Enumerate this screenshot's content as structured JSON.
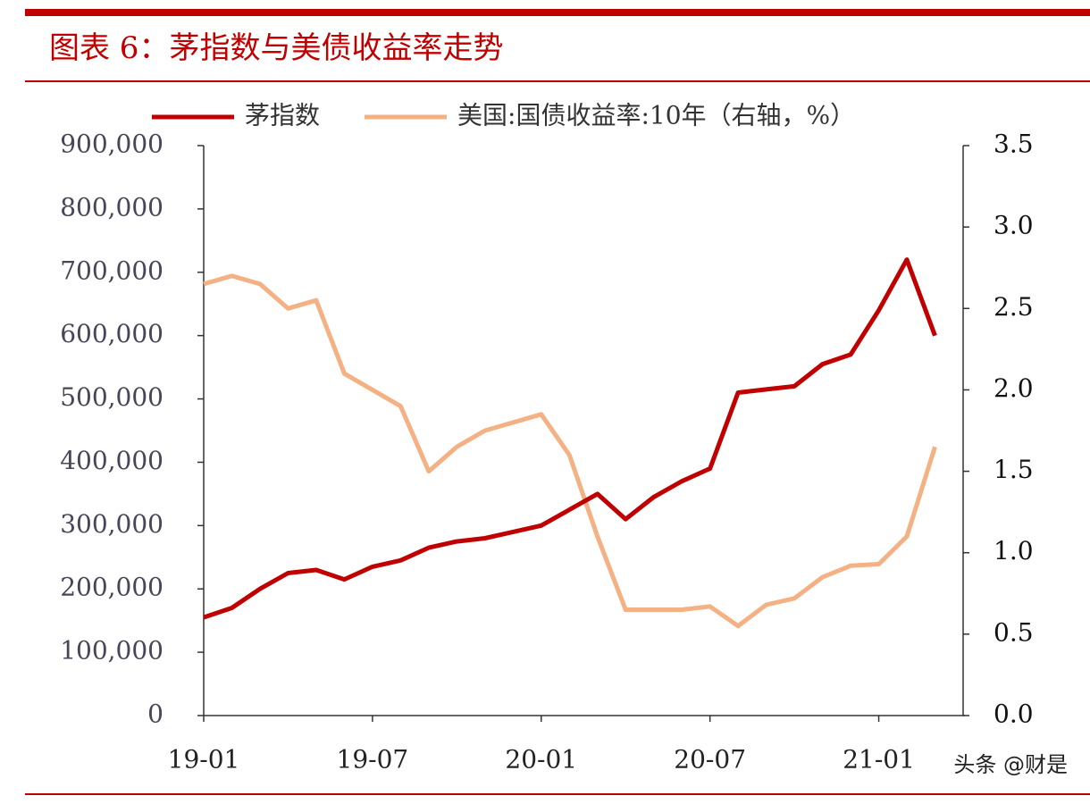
{
  "chart_data": {
    "type": "line",
    "title": "图表 6：茅指数与美债收益率走势",
    "watermark": "头条 @财是",
    "x": [
      "19-01",
      "19-02",
      "19-03",
      "19-04",
      "19-05",
      "19-06",
      "19-07",
      "19-08",
      "19-09",
      "19-10",
      "19-11",
      "19-12",
      "20-01",
      "20-02",
      "20-03",
      "20-04",
      "20-05",
      "20-06",
      "20-07",
      "20-08",
      "20-09",
      "20-10",
      "20-11",
      "20-12",
      "21-01",
      "21-02",
      "21-03"
    ],
    "xlim": [
      "19-01",
      "21-04"
    ],
    "xticks": [
      "19-01",
      "19-07",
      "20-01",
      "20-07",
      "21-01"
    ],
    "ylim": [
      0,
      900000
    ],
    "yticks": [
      0,
      {
        "value": 100000,
        "label": "100,000"
      },
      {
        "value": 200000,
        "label": "200,000"
      },
      {
        "value": 300000,
        "label": "300,000"
      },
      {
        "value": 400000,
        "label": "400,000"
      },
      {
        "value": 500000,
        "label": "500,000"
      },
      {
        "value": 600000,
        "label": "600,000"
      },
      {
        "value": 700000,
        "label": "700,000"
      },
      {
        "value": 800000,
        "label": "800,000"
      },
      {
        "value": 900000,
        "label": "900,000"
      }
    ],
    "y2lim": [
      0,
      3.5
    ],
    "y2ticks": [
      {
        "value": 0,
        "label": "0.0"
      },
      0.5,
      {
        "value": 1,
        "label": "1.0"
      },
      1.5,
      {
        "value": 2,
        "label": "2.0"
      },
      2.5,
      {
        "value": 3,
        "label": "3.0"
      },
      3.5
    ],
    "legend": "top",
    "series": [
      {
        "name": "茅指数",
        "color": "#c00000",
        "values": [
          155000,
          170000,
          200000,
          225000,
          230000,
          215000,
          235000,
          245000,
          265000,
          275000,
          280000,
          290000,
          300000,
          325000,
          350000,
          310000,
          345000,
          370000,
          390000,
          510000,
          515000,
          520000,
          555000,
          570000,
          640000,
          720000,
          600000
        ]
      },
      {
        "name": "美国:国债收益率:10年（右轴，%）",
        "color": "#f4b183",
        "axis": "y2",
        "values": [
          2.65,
          2.7,
          2.65,
          2.5,
          2.55,
          2.1,
          2.0,
          1.9,
          1.5,
          1.65,
          1.75,
          1.8,
          1.85,
          1.6,
          1.1,
          0.65,
          0.65,
          0.65,
          0.67,
          0.55,
          0.68,
          0.72,
          0.85,
          0.92,
          0.93,
          1.1,
          1.65
        ]
      }
    ]
  }
}
